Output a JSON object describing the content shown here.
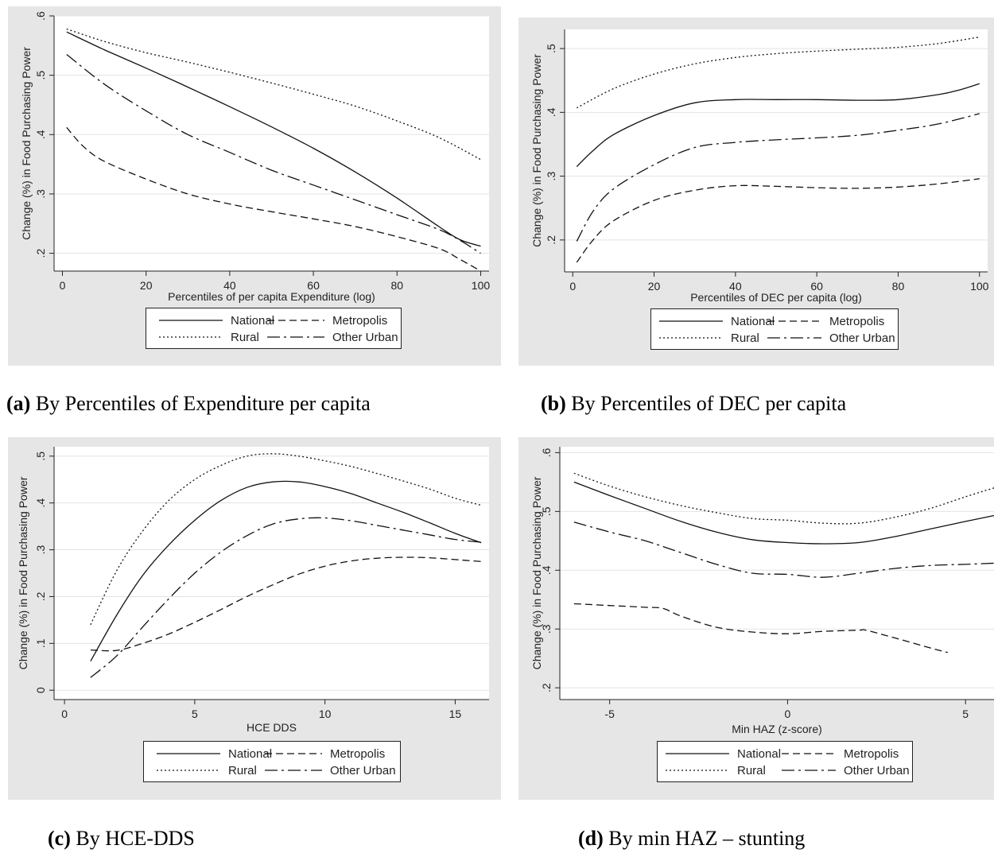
{
  "legend_entries": [
    {
      "key": "national",
      "label": "National",
      "dash": ""
    },
    {
      "key": "metropolis",
      "label": "Metropolis",
      "dash": "9,5"
    },
    {
      "key": "rural",
      "label": "Rural",
      "dash": "2,3"
    },
    {
      "key": "other_urban",
      "label": "Other Urban",
      "dash": "16,5,3,5"
    }
  ],
  "captions": [
    {
      "letter": "(a)",
      "text": " By Percentiles of Expenditure per capita"
    },
    {
      "letter": "(b)",
      "text": " By Percentiles of DEC per capita"
    },
    {
      "letter": "(c)",
      "text": " By HCE-DDS"
    },
    {
      "letter": "(d)",
      "text": " By min HAZ – stunting"
    }
  ],
  "chart_data": [
    {
      "type": "line",
      "xlabel": "Percentiles of per capita Expenditure (log)",
      "ylabel": "Change (%) in Food Purchasing Power",
      "xlim": [
        -2,
        102
      ],
      "ylim": [
        0.17,
        0.6
      ],
      "xticks": [
        0,
        20,
        40,
        60,
        80,
        100
      ],
      "xtick_labels": [
        "0",
        "20",
        "40",
        "60",
        "80",
        "100"
      ],
      "yticks": [
        0.2,
        0.3,
        0.4,
        0.5,
        0.6
      ],
      "ytick_labels": [
        ".2",
        ".3",
        ".4",
        ".5",
        ".6"
      ],
      "grid": true,
      "legend": "bottom",
      "series": [
        {
          "name": "National",
          "x": [
            1,
            10,
            20,
            30,
            40,
            50,
            60,
            70,
            80,
            90,
            95,
            100
          ],
          "y": [
            0.573,
            0.543,
            0.512,
            0.48,
            0.447,
            0.413,
            0.377,
            0.337,
            0.293,
            0.245,
            0.223,
            0.212
          ]
        },
        {
          "name": "Rural",
          "x": [
            1,
            10,
            20,
            30,
            40,
            50,
            60,
            70,
            80,
            90,
            100
          ],
          "y": [
            0.578,
            0.557,
            0.538,
            0.522,
            0.505,
            0.487,
            0.468,
            0.448,
            0.423,
            0.395,
            0.358
          ]
        },
        {
          "name": "Metropolis",
          "x": [
            1,
            5,
            10,
            20,
            30,
            40,
            50,
            60,
            70,
            80,
            90,
            95,
            100
          ],
          "y": [
            0.412,
            0.38,
            0.355,
            0.325,
            0.3,
            0.283,
            0.27,
            0.258,
            0.245,
            0.228,
            0.208,
            0.19,
            0.17
          ]
        },
        {
          "name": "Other Urban",
          "x": [
            1,
            10,
            20,
            30,
            40,
            50,
            60,
            70,
            80,
            90,
            95,
            100
          ],
          "y": [
            0.535,
            0.485,
            0.44,
            0.4,
            0.37,
            0.34,
            0.315,
            0.29,
            0.265,
            0.24,
            0.222,
            0.2
          ]
        }
      ]
    },
    {
      "type": "line",
      "xlabel": "Percentiles of DEC per capita (log)",
      "ylabel": "Change (%) in Food Purchasing Power",
      "xlim": [
        -2,
        102
      ],
      "ylim": [
        0.15,
        0.53
      ],
      "xticks": [
        0,
        20,
        40,
        60,
        80,
        100
      ],
      "xtick_labels": [
        "0",
        "20",
        "40",
        "60",
        "80",
        "100"
      ],
      "yticks": [
        0.2,
        0.3,
        0.4,
        0.5
      ],
      "ytick_labels": [
        ".2",
        ".3",
        ".4",
        ".5"
      ],
      "grid": true,
      "legend": "bottom",
      "series": [
        {
          "name": "National",
          "x": [
            1,
            5,
            10,
            20,
            30,
            40,
            50,
            60,
            70,
            80,
            90,
            95,
            100
          ],
          "y": [
            0.315,
            0.34,
            0.365,
            0.395,
            0.415,
            0.42,
            0.42,
            0.42,
            0.419,
            0.42,
            0.428,
            0.435,
            0.445
          ]
        },
        {
          "name": "Rural",
          "x": [
            1,
            10,
            20,
            30,
            40,
            50,
            60,
            70,
            80,
            90,
            100
          ],
          "y": [
            0.407,
            0.437,
            0.46,
            0.476,
            0.486,
            0.492,
            0.496,
            0.499,
            0.502,
            0.508,
            0.518
          ]
        },
        {
          "name": "Metropolis",
          "x": [
            1,
            5,
            10,
            20,
            30,
            40,
            50,
            60,
            70,
            80,
            90,
            100
          ],
          "y": [
            0.165,
            0.2,
            0.23,
            0.262,
            0.278,
            0.285,
            0.284,
            0.282,
            0.281,
            0.283,
            0.288,
            0.296
          ]
        },
        {
          "name": "Other Urban",
          "x": [
            1,
            5,
            10,
            20,
            30,
            40,
            50,
            60,
            70,
            80,
            90,
            100
          ],
          "y": [
            0.198,
            0.245,
            0.28,
            0.318,
            0.345,
            0.353,
            0.357,
            0.36,
            0.364,
            0.372,
            0.382,
            0.398
          ]
        }
      ]
    },
    {
      "type": "line",
      "xlabel": "HCE DDS",
      "ylabel": "Change (%) in Food Purchasing Power",
      "xlim": [
        -0.4,
        16.3
      ],
      "ylim": [
        -0.02,
        0.52
      ],
      "xticks": [
        0,
        5,
        10,
        15
      ],
      "xtick_labels": [
        "0",
        "5",
        "10",
        "15"
      ],
      "yticks": [
        0,
        0.1,
        0.2,
        0.3,
        0.4,
        0.5
      ],
      "ytick_labels": [
        "0",
        ".1",
        ".2",
        ".3",
        ".4",
        ".5"
      ],
      "grid": true,
      "legend": "bottom",
      "series": [
        {
          "name": "National",
          "x": [
            1,
            2,
            3,
            4,
            5,
            6,
            7,
            8,
            9,
            10,
            11,
            12,
            13,
            14,
            15,
            16
          ],
          "y": [
            0.062,
            0.16,
            0.245,
            0.31,
            0.363,
            0.405,
            0.433,
            0.445,
            0.445,
            0.435,
            0.42,
            0.4,
            0.38,
            0.358,
            0.335,
            0.315
          ]
        },
        {
          "name": "Rural",
          "x": [
            1,
            2,
            3,
            4,
            5,
            6,
            7,
            8,
            9,
            10,
            11,
            12,
            13,
            14,
            15,
            16
          ],
          "y": [
            0.14,
            0.255,
            0.34,
            0.405,
            0.45,
            0.48,
            0.5,
            0.505,
            0.5,
            0.49,
            0.478,
            0.463,
            0.447,
            0.43,
            0.41,
            0.395
          ]
        },
        {
          "name": "Metropolis",
          "x": [
            1,
            2,
            3,
            4,
            5,
            6,
            7,
            8,
            9,
            10,
            11,
            12,
            13,
            14,
            15,
            16
          ],
          "y": [
            0.086,
            0.085,
            0.1,
            0.12,
            0.145,
            0.172,
            0.2,
            0.225,
            0.248,
            0.265,
            0.276,
            0.282,
            0.284,
            0.283,
            0.279,
            0.275
          ]
        },
        {
          "name": "Other Urban",
          "x": [
            1,
            2,
            3,
            4,
            5,
            6,
            7,
            8,
            9,
            10,
            11,
            12,
            13,
            14,
            15,
            16
          ],
          "y": [
            0.027,
            0.073,
            0.135,
            0.195,
            0.25,
            0.295,
            0.33,
            0.355,
            0.366,
            0.368,
            0.362,
            0.352,
            0.342,
            0.332,
            0.322,
            0.316
          ]
        }
      ]
    },
    {
      "type": "line",
      "xlabel": "Min HAZ (z-score)",
      "ylabel": "Change (%) in Food Purchasing Power",
      "xlim": [
        -6.4,
        5.8
      ],
      "ylim": [
        0.18,
        0.61
      ],
      "xticks": [
        -5,
        0,
        5
      ],
      "xtick_labels": [
        "-5",
        "0",
        "5"
      ],
      "yticks": [
        0.2,
        0.3,
        0.4,
        0.5,
        0.6
      ],
      "ytick_labels": [
        ".2",
        ".3",
        ".4",
        ".5",
        ".6"
      ],
      "grid": true,
      "legend": "bottom",
      "series": [
        {
          "name": "National",
          "x": [
            -6,
            -5,
            -4,
            -3,
            -2,
            -1,
            0,
            1,
            2,
            3,
            4,
            5,
            5.8
          ],
          "y": [
            0.55,
            0.527,
            0.505,
            0.483,
            0.465,
            0.452,
            0.447,
            0.445,
            0.447,
            0.457,
            0.47,
            0.483,
            0.493
          ]
        },
        {
          "name": "Rural",
          "x": [
            -6,
            -5,
            -4,
            -3,
            -2,
            -1,
            0,
            1,
            2,
            3,
            4,
            5,
            5.8
          ],
          "y": [
            0.565,
            0.543,
            0.525,
            0.51,
            0.498,
            0.488,
            0.485,
            0.48,
            0.48,
            0.49,
            0.505,
            0.525,
            0.54
          ]
        },
        {
          "name": "Metropolis",
          "x": [
            -6,
            -5,
            -4,
            -3.5,
            -3,
            -2,
            -1,
            0,
            1,
            2,
            2.2,
            3,
            4,
            4.5
          ],
          "y": [
            0.343,
            0.34,
            0.337,
            0.335,
            0.322,
            0.303,
            0.295,
            0.292,
            0.296,
            0.298,
            0.298,
            0.285,
            0.268,
            0.26
          ]
        },
        {
          "name": "Other Urban",
          "x": [
            -6,
            -5,
            -4,
            -3,
            -2,
            -1,
            0,
            1,
            2,
            3,
            4,
            5,
            5.8
          ],
          "y": [
            0.482,
            0.465,
            0.45,
            0.43,
            0.41,
            0.395,
            0.393,
            0.388,
            0.395,
            0.403,
            0.408,
            0.41,
            0.412
          ]
        }
      ]
    }
  ]
}
